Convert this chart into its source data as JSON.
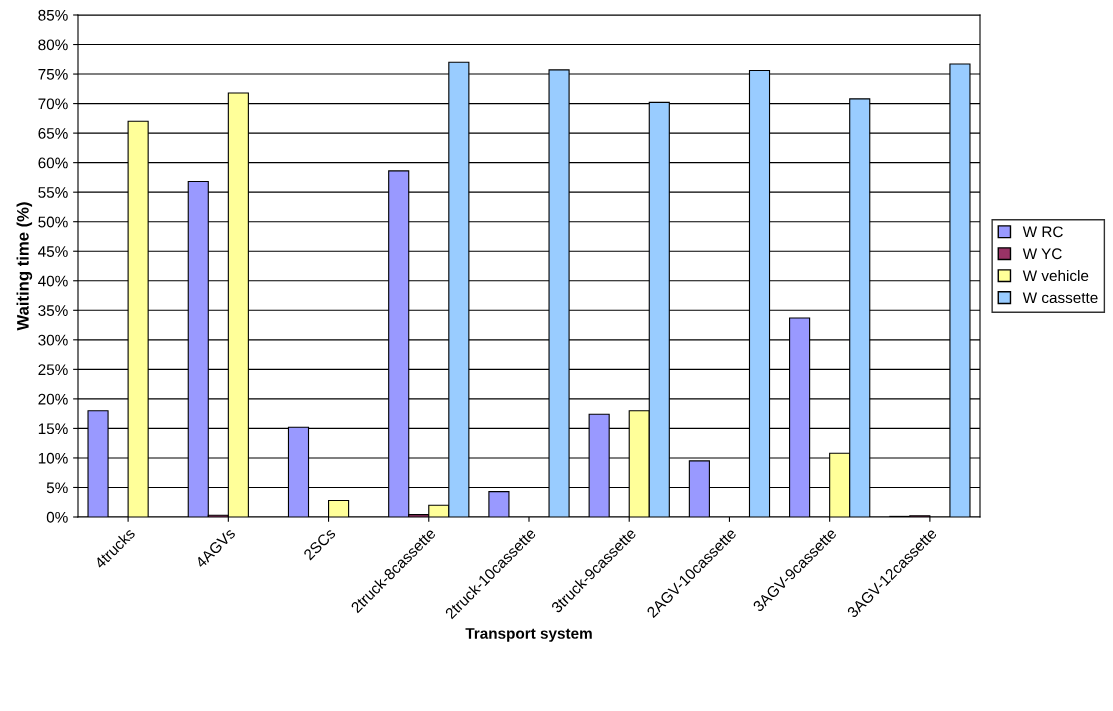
{
  "chart_data": {
    "type": "bar",
    "xlabel": "Transport system",
    "ylabel": "Waiting time (%)",
    "categories": [
      "4trucks",
      "4AGVs",
      "2SCs",
      "2truck-8cassette",
      "2truck-10cassette",
      "3truck-9cassette",
      "2AGV-10cassette",
      "3AGV-9cassette",
      "3AGV-12cassette"
    ],
    "series": [
      {
        "name": "W RC",
        "color": "#9999ff",
        "values": [
          18,
          56.8,
          15.2,
          58.6,
          4.3,
          17.4,
          9.5,
          33.7,
          0.1
        ]
      },
      {
        "name": "W YC",
        "color": "#993366",
        "values": [
          null,
          0.3,
          null,
          0.4,
          null,
          null,
          null,
          null,
          0.2
        ]
      },
      {
        "name": "W vehicle",
        "color": "#ffff99",
        "values": [
          67,
          71.8,
          2.8,
          2,
          null,
          18,
          null,
          10.8,
          null
        ]
      },
      {
        "name": "W cassette",
        "color": "#99ccff",
        "values": [
          null,
          null,
          null,
          77,
          75.7,
          70.2,
          75.6,
          70.8,
          76.7
        ]
      }
    ],
    "ylim": [
      0,
      85
    ],
    "yticks": [
      {
        "value": 0,
        "label": "0%"
      },
      {
        "value": 5,
        "label": "5%"
      },
      {
        "value": 10,
        "label": "10%"
      },
      {
        "value": 15,
        "label": "15%"
      },
      {
        "value": 20,
        "label": "20%"
      },
      {
        "value": 25,
        "label": "25%"
      },
      {
        "value": 30,
        "label": "30%"
      },
      {
        "value": 35,
        "label": "35%"
      },
      {
        "value": 40,
        "label": "40%"
      },
      {
        "value": 45,
        "label": "45%"
      },
      {
        "value": 50,
        "label": "50%"
      },
      {
        "value": 55,
        "label": "55%"
      },
      {
        "value": 60,
        "label": "60%"
      },
      {
        "value": 65,
        "label": "65%"
      },
      {
        "value": 70,
        "label": "70%"
      },
      {
        "value": 75,
        "label": "75%"
      },
      {
        "value": 80,
        "label": "80%"
      },
      {
        "value": 85,
        "label": "85%"
      }
    ],
    "grid": "y",
    "legend": "right"
  }
}
